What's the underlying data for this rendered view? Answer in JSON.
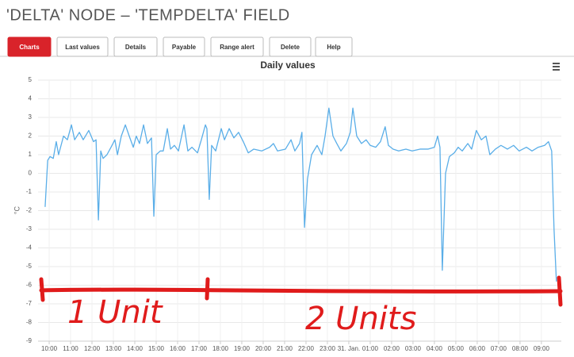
{
  "header": {
    "title": "'DELTA' NODE – 'TEMPDELTA' FIELD"
  },
  "tabs": [
    "Charts",
    "Last values",
    "Details",
    "Payable",
    "Range alert",
    "Delete",
    "Help"
  ],
  "active_tab": 0,
  "chart_data": {
    "type": "line",
    "title": "Daily values",
    "y_label": "°C",
    "color": "#5aaee8",
    "grid": true,
    "x": [
      9.81,
      9.93,
      10.04,
      10.19,
      10.33,
      10.44,
      10.67,
      10.85,
      11.04,
      11.19,
      11.41,
      11.59,
      11.85,
      12.07,
      12.19,
      12.3,
      12.41,
      12.52,
      12.7,
      12.89,
      13.07,
      13.19,
      13.37,
      13.56,
      13.74,
      13.93,
      14.07,
      14.22,
      14.41,
      14.59,
      14.78,
      14.89,
      15.0,
      15.19,
      15.33,
      15.52,
      15.67,
      15.85,
      16.04,
      16.3,
      16.48,
      16.67,
      16.93,
      17.11,
      17.3,
      17.37,
      17.48,
      17.59,
      17.78,
      18.04,
      18.19,
      18.41,
      18.63,
      18.85,
      19.07,
      19.3,
      19.56,
      19.93,
      20.3,
      20.48,
      20.67,
      21.04,
      21.3,
      21.48,
      21.7,
      21.81,
      21.93,
      22.07,
      22.26,
      22.52,
      22.74,
      22.89,
      23.07,
      23.26,
      23.44,
      23.63,
      23.89,
      24.07,
      24.19,
      24.37,
      24.59,
      24.81,
      25.0,
      25.26,
      25.48,
      25.7,
      25.85,
      26.07,
      26.33,
      26.67,
      26.96,
      27.33,
      27.7,
      28.0,
      28.15,
      28.26,
      28.37,
      28.52,
      28.7,
      28.93,
      29.11,
      29.3,
      29.56,
      29.74,
      29.96,
      30.19,
      30.41,
      30.59,
      30.85,
      31.11,
      31.41,
      31.7,
      31.96,
      32.3,
      32.56,
      32.85,
      33.15,
      33.33,
      33.48,
      33.59,
      33.7
    ],
    "values": [
      -1.8,
      0.7,
      0.9,
      0.8,
      1.7,
      1.0,
      2.0,
      1.8,
      2.6,
      1.8,
      2.2,
      1.8,
      2.3,
      1.7,
      1.8,
      -2.5,
      1.2,
      0.8,
      1.0,
      1.4,
      1.8,
      1.0,
      2.0,
      2.6,
      2.0,
      1.4,
      2.0,
      1.6,
      2.6,
      1.6,
      1.9,
      -2.3,
      1.0,
      1.2,
      1.2,
      2.4,
      1.3,
      1.5,
      1.2,
      2.6,
      1.2,
      1.4,
      1.1,
      1.8,
      2.6,
      2.4,
      -1.4,
      1.5,
      1.2,
      2.4,
      1.8,
      2.4,
      1.9,
      2.2,
      1.7,
      1.1,
      1.3,
      1.2,
      1.4,
      1.6,
      1.2,
      1.3,
      1.8,
      1.2,
      1.6,
      2.2,
      -2.9,
      -0.3,
      1.0,
      1.5,
      1.0,
      2.0,
      3.5,
      2.0,
      1.6,
      1.2,
      1.6,
      2.2,
      3.5,
      2.0,
      1.6,
      1.8,
      1.5,
      1.4,
      1.7,
      2.5,
      1.5,
      1.3,
      1.2,
      1.3,
      1.2,
      1.3,
      1.3,
      1.4,
      2.0,
      1.4,
      -5.2,
      0.0,
      0.9,
      1.1,
      1.4,
      1.2,
      1.6,
      1.3,
      2.3,
      1.8,
      2.0,
      1.0,
      1.3,
      1.5,
      1.3,
      1.5,
      1.2,
      1.4,
      1.2,
      1.4,
      1.5,
      1.7,
      1.2,
      -3.0,
      -5.8
    ],
    "xlim": [
      9.48,
      33.93
    ],
    "ylim": [
      -9,
      5
    ],
    "yticks": [
      -9,
      -8,
      -7,
      -6,
      -5,
      -4,
      -3,
      -2,
      -1,
      0,
      1,
      2,
      3,
      4,
      5
    ],
    "xticks": [
      {
        "value": 10,
        "label": "10:00"
      },
      {
        "value": 11,
        "label": "11:00"
      },
      {
        "value": 12,
        "label": "12:00"
      },
      {
        "value": 13,
        "label": "13:00"
      },
      {
        "value": 14,
        "label": "14:00"
      },
      {
        "value": 15,
        "label": "15:00"
      },
      {
        "value": 16,
        "label": "16:00"
      },
      {
        "value": 17,
        "label": "17:00"
      },
      {
        "value": 18,
        "label": "18:00"
      },
      {
        "value": 19,
        "label": "19:00"
      },
      {
        "value": 20,
        "label": "20:00"
      },
      {
        "value": 21,
        "label": "21:00"
      },
      {
        "value": 22,
        "label": "22:00"
      },
      {
        "value": 23,
        "label": "23:00"
      },
      {
        "value": 24,
        "label": "31. Jan."
      },
      {
        "value": 25,
        "label": "01:00"
      },
      {
        "value": 26,
        "label": "02:00"
      },
      {
        "value": 27,
        "label": "03:00"
      },
      {
        "value": 28,
        "label": "04:00"
      },
      {
        "value": 29,
        "label": "05:00"
      },
      {
        "value": 30,
        "label": "06:00"
      },
      {
        "value": 31,
        "label": "07:00"
      },
      {
        "value": 32,
        "label": "08:00"
      },
      {
        "value": 33,
        "label": "09:00"
      }
    ],
    "annotations": [
      "1 Unit",
      "2 Units"
    ]
  }
}
